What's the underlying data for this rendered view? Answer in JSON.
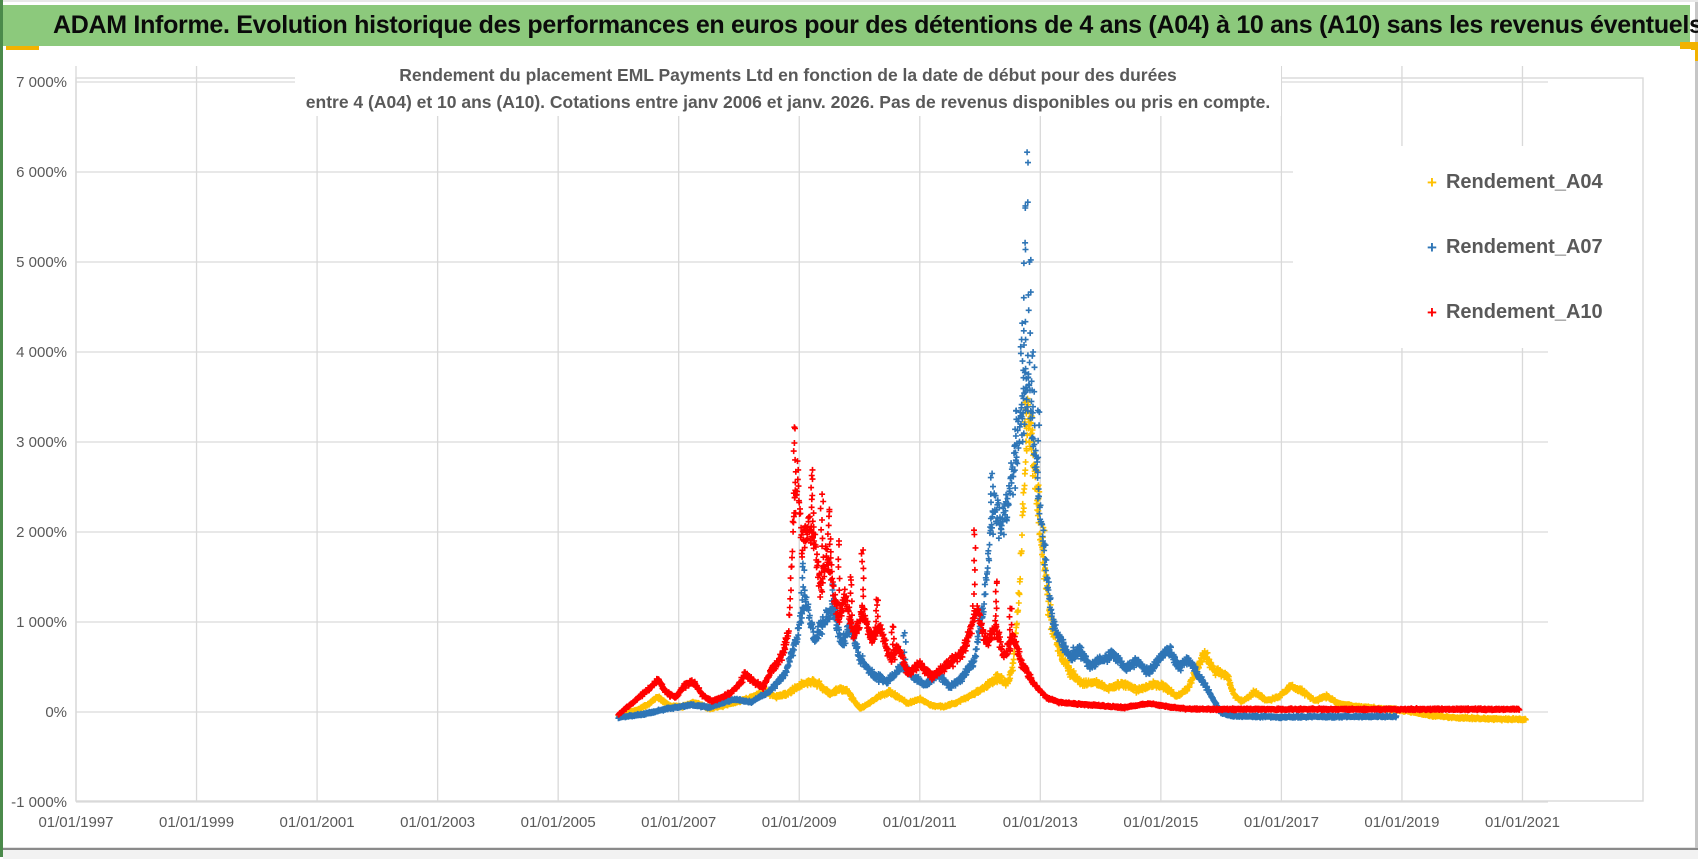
{
  "page": {
    "header": {
      "title": "ADAM Informe. Evolution historique des performances en euros pour des détentions de 4 ans (A04) à 10 ans (A10) sans les revenus éventuels"
    },
    "colors": {
      "header_background": "#8cc97c",
      "selection_handle": "#f2b200",
      "gridline": "#d9d9d9",
      "axis_text": "#595959",
      "title_text": "#595959"
    }
  },
  "chart_data": {
    "type": "scatter",
    "marker": "plus",
    "grid": true,
    "title_lines": [
      "Rendement du placement EML Payments Ltd en fonction de la date de début pour des durées",
      "entre 4 (A04) et 10 ans (A10). Cotations entre janv 2006 et janv. 2026. Pas de revenus disponibles ou pris en compte."
    ],
    "x_axis": {
      "tick_years": [
        1997,
        1999,
        2001,
        2003,
        2005,
        2007,
        2009,
        2011,
        2013,
        2015,
        2017,
        2019,
        2021
      ],
      "tick_labels": [
        "01/01/1997",
        "01/01/1999",
        "01/01/2001",
        "01/01/2003",
        "01/01/2005",
        "01/01/2007",
        "01/01/2009",
        "01/01/2011",
        "01/01/2013",
        "01/01/2015",
        "01/01/2017",
        "01/01/2019",
        "01/01/2021"
      ],
      "range_years": [
        1997,
        2023
      ]
    },
    "y_axis": {
      "tick_values": [
        -1000,
        0,
        1000,
        2000,
        3000,
        4000,
        5000,
        6000,
        7000
      ],
      "tick_labels": [
        "-1 000%",
        "0%",
        "1 000%",
        "2 000%",
        "3 000%",
        "4 000%",
        "5 000%",
        "6 000%",
        "7 000%"
      ],
      "range": [
        -1000,
        7000
      ]
    },
    "legend": {
      "position": "right",
      "items": [
        {
          "label": "Rendement_A04",
          "color": "#FFC000"
        },
        {
          "label": "Rendement_A07",
          "color": "#2E75B6"
        },
        {
          "label": "Rendement_A10",
          "color": "#FF0000"
        }
      ]
    },
    "series": [
      {
        "name": "Rendement_A04",
        "color": "#FFC000",
        "seed": 11,
        "noise_rel": 0.11,
        "noise_abs": 13,
        "range": [
          2006.0,
          2021.05
        ],
        "anchors": [
          [
            2006.0,
            -40
          ],
          [
            2006.3,
            20
          ],
          [
            2006.5,
            90
          ],
          [
            2006.65,
            170
          ],
          [
            2006.85,
            70
          ],
          [
            2007.05,
            60
          ],
          [
            2007.25,
            110
          ],
          [
            2007.5,
            40
          ],
          [
            2007.8,
            80
          ],
          [
            2008.1,
            140
          ],
          [
            2008.3,
            190
          ],
          [
            2008.45,
            230
          ],
          [
            2008.6,
            170
          ],
          [
            2008.8,
            200
          ],
          [
            2009.0,
            290
          ],
          [
            2009.15,
            340
          ],
          [
            2009.3,
            320
          ],
          [
            2009.5,
            200
          ],
          [
            2009.65,
            255
          ],
          [
            2009.8,
            230
          ],
          [
            2010.0,
            40
          ],
          [
            2010.15,
            90
          ],
          [
            2010.3,
            170
          ],
          [
            2010.5,
            225
          ],
          [
            2010.65,
            160
          ],
          [
            2010.8,
            95
          ],
          [
            2011.0,
            145
          ],
          [
            2011.2,
            70
          ],
          [
            2011.4,
            60
          ],
          [
            2011.6,
            105
          ],
          [
            2011.8,
            170
          ],
          [
            2012.0,
            240
          ],
          [
            2012.15,
            310
          ],
          [
            2012.3,
            390
          ],
          [
            2012.45,
            310
          ],
          [
            2012.55,
            520
          ],
          [
            2012.65,
            1400
          ],
          [
            2012.72,
            2400
          ],
          [
            2012.78,
            3200
          ],
          [
            2012.84,
            3100
          ],
          [
            2012.92,
            2550
          ],
          [
            2013.0,
            1950
          ],
          [
            2013.1,
            1350
          ],
          [
            2013.2,
            950
          ],
          [
            2013.35,
            620
          ],
          [
            2013.5,
            430
          ],
          [
            2013.7,
            310
          ],
          [
            2013.9,
            330
          ],
          [
            2014.1,
            265
          ],
          [
            2014.35,
            315
          ],
          [
            2014.6,
            245
          ],
          [
            2014.85,
            305
          ],
          [
            2015.05,
            285
          ],
          [
            2015.25,
            175
          ],
          [
            2015.45,
            260
          ],
          [
            2015.6,
            480
          ],
          [
            2015.72,
            660
          ],
          [
            2015.85,
            480
          ],
          [
            2016.0,
            430
          ],
          [
            2016.1,
            400
          ],
          [
            2016.22,
            175
          ],
          [
            2016.35,
            115
          ],
          [
            2016.55,
            225
          ],
          [
            2016.75,
            125
          ],
          [
            2016.95,
            165
          ],
          [
            2017.15,
            290
          ],
          [
            2017.35,
            235
          ],
          [
            2017.55,
            125
          ],
          [
            2017.75,
            175
          ],
          [
            2017.95,
            95
          ],
          [
            2018.2,
            65
          ],
          [
            2018.5,
            48
          ],
          [
            2018.8,
            32
          ],
          [
            2019.1,
            10
          ],
          [
            2019.4,
            -30
          ],
          [
            2019.8,
            -60
          ],
          [
            2020.5,
            -78
          ],
          [
            2021.0,
            -82
          ],
          [
            2021.05,
            -75
          ]
        ],
        "spikes": [
          [
            2012.76,
            3460,
            7
          ],
          [
            2012.83,
            3320,
            6
          ],
          [
            2012.9,
            2750,
            6
          ],
          [
            2012.97,
            2520,
            5
          ],
          [
            2013.05,
            2050,
            4
          ]
        ]
      },
      {
        "name": "Rendement_A07",
        "color": "#2E75B6",
        "seed": 23,
        "noise_rel": 0.09,
        "noise_abs": 12,
        "range": [
          2006.0,
          2018.9
        ],
        "anchors": [
          [
            2006.0,
            -60
          ],
          [
            2006.4,
            -25
          ],
          [
            2006.8,
            35
          ],
          [
            2007.2,
            80
          ],
          [
            2007.5,
            50
          ],
          [
            2007.9,
            140
          ],
          [
            2008.2,
            110
          ],
          [
            2008.5,
            230
          ],
          [
            2008.75,
            420
          ],
          [
            2008.95,
            800
          ],
          [
            2009.1,
            1300
          ],
          [
            2009.25,
            820
          ],
          [
            2009.4,
            1000
          ],
          [
            2009.55,
            1150
          ],
          [
            2009.7,
            760
          ],
          [
            2009.85,
            950
          ],
          [
            2010.0,
            600
          ],
          [
            2010.2,
            430
          ],
          [
            2010.45,
            330
          ],
          [
            2010.7,
            520
          ],
          [
            2010.9,
            380
          ],
          [
            2011.1,
            300
          ],
          [
            2011.3,
            430
          ],
          [
            2011.5,
            270
          ],
          [
            2011.7,
            390
          ],
          [
            2011.9,
            560
          ],
          [
            2012.05,
            1150
          ],
          [
            2012.15,
            1900
          ],
          [
            2012.25,
            2350
          ],
          [
            2012.35,
            2050
          ],
          [
            2012.45,
            2300
          ],
          [
            2012.55,
            2650
          ],
          [
            2012.65,
            3100
          ],
          [
            2012.72,
            3400
          ],
          [
            2012.78,
            3650
          ],
          [
            2012.84,
            3400
          ],
          [
            2012.92,
            2850
          ],
          [
            2013.0,
            2150
          ],
          [
            2013.1,
            1550
          ],
          [
            2013.2,
            1000
          ],
          [
            2013.35,
            760
          ],
          [
            2013.5,
            610
          ],
          [
            2013.65,
            690
          ],
          [
            2013.8,
            520
          ],
          [
            2014.0,
            560
          ],
          [
            2014.2,
            650
          ],
          [
            2014.4,
            480
          ],
          [
            2014.6,
            560
          ],
          [
            2014.8,
            440
          ],
          [
            2015.0,
            610
          ],
          [
            2015.15,
            700
          ],
          [
            2015.3,
            480
          ],
          [
            2015.45,
            600
          ],
          [
            2015.6,
            420
          ],
          [
            2015.75,
            280
          ],
          [
            2015.88,
            120
          ],
          [
            2016.0,
            -10
          ],
          [
            2016.2,
            -45
          ],
          [
            2017.0,
            -55
          ],
          [
            2018.0,
            -50
          ],
          [
            2018.9,
            -50
          ]
        ],
        "spikes": [
          [
            2009.06,
            1650,
            6
          ],
          [
            2009.55,
            1420,
            5
          ],
          [
            2010.75,
            880,
            4
          ],
          [
            2012.2,
            2650,
            5
          ],
          [
            2012.6,
            3350,
            5
          ],
          [
            2012.7,
            4320,
            10
          ],
          [
            2012.75,
            5600,
            7
          ],
          [
            2012.78,
            6220,
            5
          ],
          [
            2012.82,
            5000,
            6
          ],
          [
            2012.88,
            4000,
            6
          ],
          [
            2012.96,
            3350,
            5
          ]
        ]
      },
      {
        "name": "Rendement_A10",
        "color": "#FF0000",
        "seed": 37,
        "noise_rel": 0.09,
        "noise_abs": 10,
        "range": [
          2006.0,
          2020.95
        ],
        "anchors": [
          [
            2006.0,
            -30
          ],
          [
            2006.15,
            60
          ],
          [
            2006.3,
            140
          ],
          [
            2006.5,
            260
          ],
          [
            2006.65,
            350
          ],
          [
            2006.8,
            210
          ],
          [
            2006.95,
            160
          ],
          [
            2007.1,
            300
          ],
          [
            2007.25,
            330
          ],
          [
            2007.4,
            180
          ],
          [
            2007.55,
            120
          ],
          [
            2007.7,
            160
          ],
          [
            2007.85,
            210
          ],
          [
            2008.0,
            300
          ],
          [
            2008.1,
            420
          ],
          [
            2008.25,
            330
          ],
          [
            2008.4,
            280
          ],
          [
            2008.55,
            480
          ],
          [
            2008.7,
            600
          ],
          [
            2008.82,
            900
          ],
          [
            2008.9,
            2100
          ],
          [
            2008.97,
            2600
          ],
          [
            2009.05,
            1800
          ],
          [
            2009.15,
            2150
          ],
          [
            2009.25,
            1900
          ],
          [
            2009.35,
            1350
          ],
          [
            2009.45,
            1800
          ],
          [
            2009.55,
            1450
          ],
          [
            2009.65,
            1050
          ],
          [
            2009.75,
            1300
          ],
          [
            2009.9,
            850
          ],
          [
            2010.05,
            1100
          ],
          [
            2010.2,
            800
          ],
          [
            2010.35,
            950
          ],
          [
            2010.5,
            600
          ],
          [
            2010.65,
            700
          ],
          [
            2010.8,
            430
          ],
          [
            2011.0,
            530
          ],
          [
            2011.2,
            390
          ],
          [
            2011.45,
            530
          ],
          [
            2011.65,
            620
          ],
          [
            2011.8,
            820
          ],
          [
            2011.95,
            1150
          ],
          [
            2012.1,
            750
          ],
          [
            2012.25,
            950
          ],
          [
            2012.4,
            620
          ],
          [
            2012.55,
            820
          ],
          [
            2012.7,
            520
          ],
          [
            2012.85,
            360
          ],
          [
            2012.95,
            260
          ],
          [
            2013.1,
            160
          ],
          [
            2013.3,
            110
          ],
          [
            2013.6,
            90
          ],
          [
            2014.0,
            70
          ],
          [
            2014.4,
            50
          ],
          [
            2014.8,
            95
          ],
          [
            2015.1,
            60
          ],
          [
            2015.4,
            35
          ],
          [
            2016.0,
            30
          ],
          [
            2018.0,
            30
          ],
          [
            2020.0,
            30
          ],
          [
            2020.95,
            30
          ]
        ],
        "spikes": [
          [
            2008.93,
            3150,
            7
          ],
          [
            2009.22,
            2690,
            9
          ],
          [
            2009.38,
            2420,
            8
          ],
          [
            2009.5,
            2250,
            8
          ],
          [
            2009.66,
            1900,
            6
          ],
          [
            2009.85,
            1500,
            6
          ],
          [
            2010.06,
            1800,
            7
          ],
          [
            2010.28,
            1250,
            6
          ],
          [
            2010.55,
            950,
            5
          ],
          [
            2011.9,
            2020,
            7
          ],
          [
            2012.28,
            1450,
            6
          ],
          [
            2012.5,
            1150,
            5
          ]
        ]
      }
    ]
  }
}
